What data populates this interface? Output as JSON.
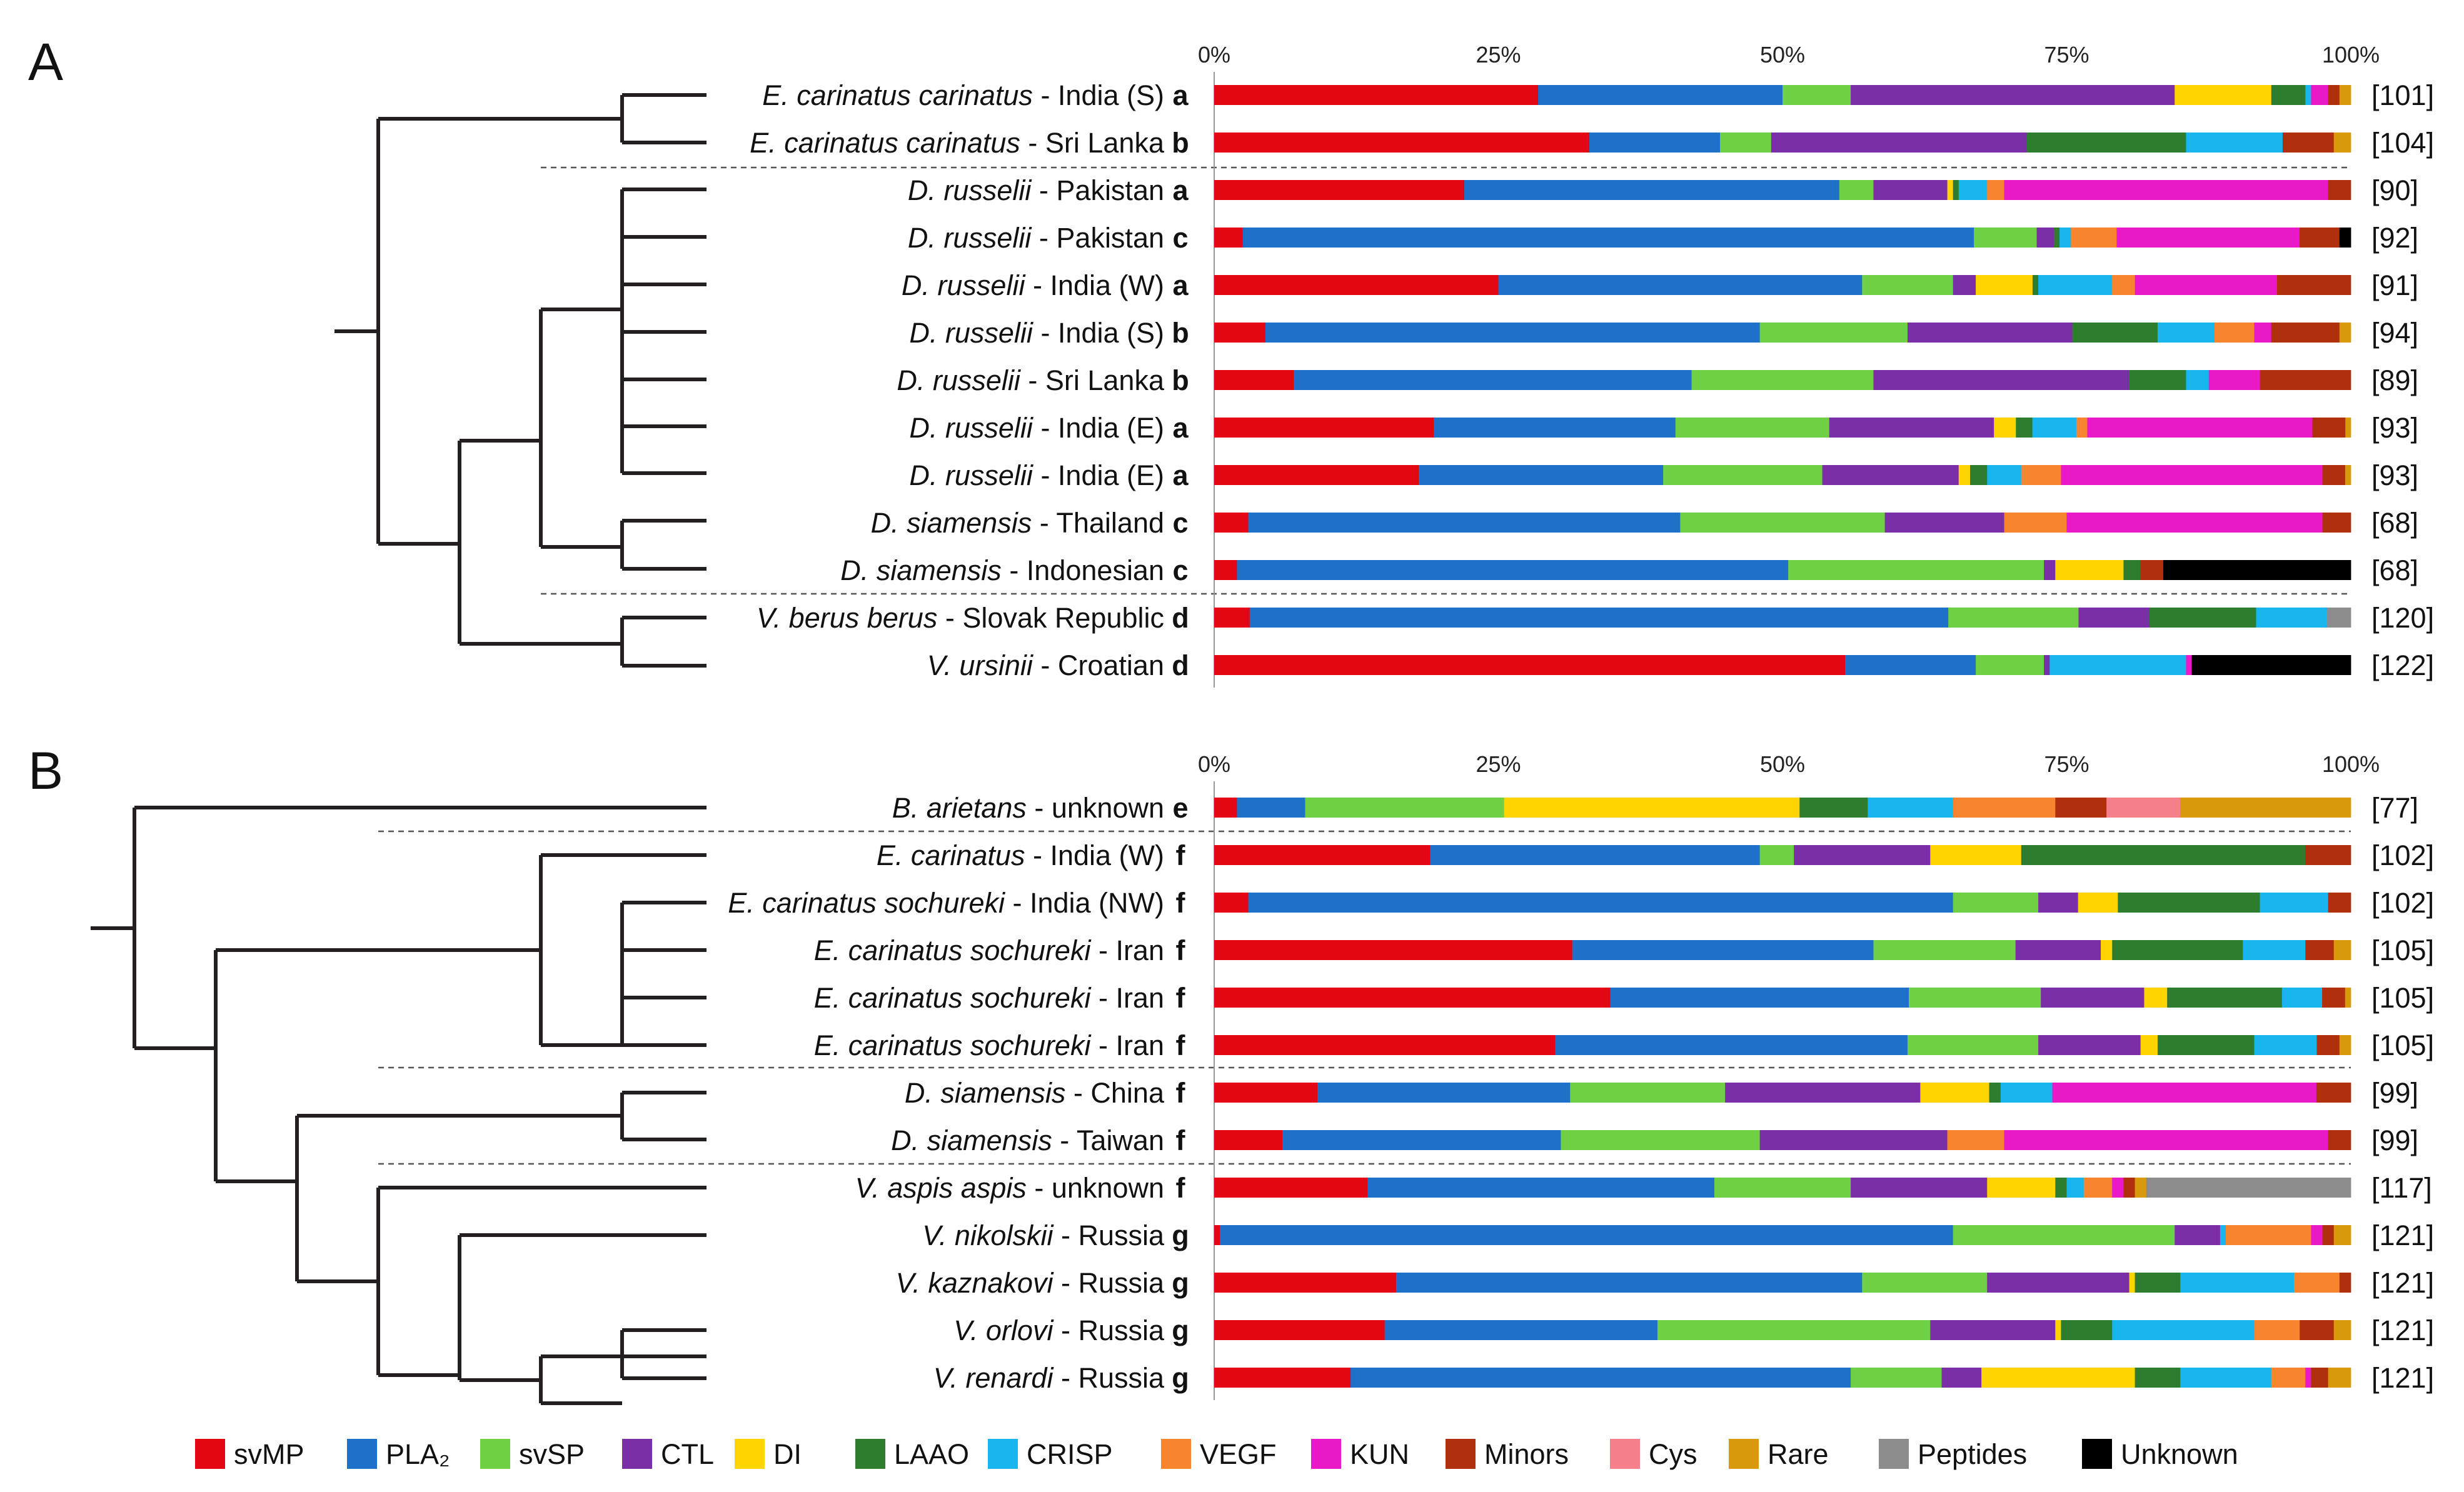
{
  "categories": [
    "svMP",
    "PLA₂",
    "svSP",
    "CTL",
    "DI",
    "LAAO",
    "CRISP",
    "VEGF",
    "KUN",
    "Minors",
    "Cys",
    "Rare",
    "Peptides",
    "Unknown"
  ],
  "colors": {
    "svMP": "#e30613",
    "PLA2": "#1f70c8",
    "svSP": "#6fcf45",
    "CTL": "#7b2fa6",
    "DI": "#ffd400",
    "LAAO": "#2e7d2e",
    "CRISP": "#19b5ee",
    "VEGF": "#f7842f",
    "KUN": "#ea19c8",
    "Minors": "#b0300d",
    "Cys": "#f57f8a",
    "Rare": "#d89a0c",
    "Peptides": "#8c8c8c",
    "Unknown": "#000000"
  },
  "chart_data": [
    {
      "type": "bar",
      "panel": "A",
      "orientation": "horizontal-stacked",
      "xlim": [
        0,
        100
      ],
      "xticks": [
        "0%",
        "25%",
        "50%",
        "75%",
        "100%"
      ],
      "rows": [
        {
          "genus": "E. carinatus carinatus",
          "locality": " - India (S)",
          "code": "a",
          "ref": "[101]",
          "values": [
            28.5,
            21.5,
            6,
            28.5,
            8.5,
            3,
            0.5,
            0,
            1.5,
            1,
            0,
            1,
            0,
            0
          ]
        },
        {
          "genus": "E. carinatus carinatus",
          "locality": " - Sri Lanka",
          "code": "b",
          "ref": "[104]",
          "values": [
            33,
            11.5,
            4.5,
            22.5,
            0,
            14,
            8.5,
            0,
            0,
            4.5,
            0,
            1.5,
            0,
            0
          ]
        },
        {
          "genus": "D. russelii",
          "locality": " - Pakistan",
          "code": "a",
          "ref": "[90]",
          "values": [
            22,
            33,
            3,
            6.5,
            0.5,
            0.5,
            2.5,
            1.5,
            28.5,
            2,
            0,
            0,
            0,
            0
          ]
        },
        {
          "genus": "D. russelii",
          "locality": " - Pakistan",
          "code": "c",
          "ref": "[92]",
          "values": [
            2.5,
            64,
            5.5,
            1.5,
            0,
            0.5,
            1,
            4,
            16,
            3.5,
            0,
            0,
            0,
            1
          ]
        },
        {
          "genus": "D. russelii",
          "locality": " - India (W)",
          "code": "a",
          "ref": "[91]",
          "values": [
            25,
            32,
            8,
            2,
            5,
            0.5,
            6.5,
            2,
            12.5,
            6.5,
            0,
            0,
            0,
            0
          ]
        },
        {
          "genus": "D. russelii",
          "locality": " - India (S)",
          "code": "b",
          "ref": "[94]",
          "values": [
            4.5,
            43.5,
            13,
            14.5,
            0,
            7.5,
            5,
            3.5,
            1.5,
            6,
            0,
            1,
            0,
            0
          ]
        },
        {
          "genus": "D. russelii",
          "locality": " - Sri Lanka",
          "code": "b",
          "ref": "[89]",
          "values": [
            7,
            35,
            16,
            22.5,
            0,
            5,
            2,
            0,
            4.5,
            8,
            0,
            0,
            0,
            0
          ]
        },
        {
          "genus": "D. russelii",
          "locality": " - India (E)",
          "code": "a",
          "ref": "[93]",
          "values": [
            20,
            22,
            14,
            15,
            2,
            1.5,
            4,
            1,
            20.5,
            3,
            0,
            0.5,
            0,
            0
          ]
        },
        {
          "genus": "D. russelii",
          "locality": " - India (E)",
          "code": "a",
          "ref": "[93]",
          "values": [
            18,
            21.5,
            14,
            12,
            1,
            1.5,
            3,
            3.5,
            23,
            2,
            0,
            0.5,
            0,
            0
          ]
        },
        {
          "genus": "D. siamensis",
          "locality": " - Thailand",
          "code": "c",
          "ref": "[68]",
          "values": [
            3,
            38,
            18,
            10.5,
            0,
            0,
            0,
            5.5,
            22.5,
            2.5,
            0,
            0,
            0,
            0
          ]
        },
        {
          "genus": "D. siamensis",
          "locality": " - Indonesian",
          "code": "c",
          "ref": "[68]",
          "values": [
            2,
            48.5,
            22.5,
            1,
            6,
            1.5,
            0,
            0,
            0,
            2,
            0,
            0,
            0,
            16.5
          ]
        },
        {
          "genus": "V. berus berus",
          "locality": " - Slovak Republic",
          "code": "d",
          "ref": "[120]",
          "values": [
            3,
            59,
            11,
            6,
            0,
            9,
            6,
            0,
            0,
            0,
            0,
            0,
            2,
            0
          ]
        },
        {
          "genus": "V. ursinii",
          "locality": " - Croatian",
          "code": "d",
          "ref": "[122]",
          "values": [
            55.5,
            11.5,
            6,
            0.5,
            0,
            0,
            12,
            0,
            0.5,
            0,
            0,
            0,
            0,
            14
          ]
        }
      ]
    },
    {
      "type": "bar",
      "panel": "B",
      "orientation": "horizontal-stacked",
      "xlim": [
        0,
        100
      ],
      "xticks": [
        "0%",
        "25%",
        "50%",
        "75%",
        "100%"
      ],
      "rows": [
        {
          "genus": "B. arietans",
          "locality": " - unknown",
          "code": "e",
          "ref": "[77]",
          "values": [
            2,
            6,
            17.5,
            0,
            26,
            6,
            7.5,
            9,
            0,
            4.5,
            6.5,
            15,
            0,
            0
          ]
        },
        {
          "genus": "E. carinatus",
          "locality": " - India (W)",
          "code": "f",
          "ref": "[102]",
          "values": [
            19,
            29,
            3,
            12,
            8,
            25,
            0,
            0,
            0,
            4,
            0,
            0,
            0,
            0
          ]
        },
        {
          "genus": "E. carinatus sochureki",
          "locality": " - India (NW)",
          "code": "f",
          "ref": "[102]",
          "values": [
            3,
            62,
            7.5,
            3.5,
            3.5,
            12.5,
            6,
            0,
            0,
            2,
            0,
            0,
            0,
            0
          ]
        },
        {
          "genus": "E. carinatus sochureki",
          "locality": " - Iran",
          "code": "f",
          "ref": "[105]",
          "values": [
            31.5,
            26.5,
            12.5,
            7.5,
            1,
            11.5,
            5.5,
            0,
            0,
            2.5,
            0,
            1.5,
            0,
            0
          ]
        },
        {
          "genus": "E. carinatus sochureki",
          "locality": " - Iran",
          "code": "f",
          "ref": "[105]",
          "values": [
            34.5,
            26,
            11.5,
            9,
            2,
            10,
            3.5,
            0,
            0,
            2,
            0,
            0.5,
            0,
            0
          ]
        },
        {
          "genus": "E. carinatus sochureki",
          "locality": " - Iran",
          "code": "f",
          "ref": "[105]",
          "values": [
            30,
            31,
            11.5,
            9,
            1.5,
            8.5,
            5.5,
            0,
            0,
            2,
            0,
            1,
            0,
            0
          ]
        },
        {
          "genus": "D. siamensis",
          "locality": " - China",
          "code": "f",
          "ref": "[99]",
          "values": [
            9,
            22,
            13.5,
            17,
            6,
            1,
            4.5,
            0,
            23,
            3,
            0,
            0,
            0,
            0
          ]
        },
        {
          "genus": "D. siamensis",
          "locality": " - Taiwan",
          "code": "f",
          "ref": "[99]",
          "values": [
            6,
            24.5,
            17.5,
            16.5,
            0,
            0,
            0,
            5,
            28.5,
            2,
            0,
            0,
            0,
            0
          ]
        },
        {
          "genus": "V. aspis aspis",
          "locality": " - unknown",
          "code": "f",
          "ref": "[117]",
          "values": [
            13.5,
            30.5,
            12,
            12,
            6,
            1,
            1.5,
            2.5,
            1,
            1,
            0,
            1,
            18,
            0
          ]
        },
        {
          "genus": "V. nikolskii",
          "locality": " - Russia",
          "code": "g",
          "ref": "[121]",
          "values": [
            0.5,
            64.5,
            19.5,
            4,
            0,
            0,
            0.5,
            7.5,
            1,
            1,
            0,
            1.5,
            0,
            0
          ]
        },
        {
          "genus": "V. kaznakovi",
          "locality": " - Russia",
          "code": "g",
          "ref": "[121]",
          "values": [
            16,
            41,
            11,
            12.5,
            0.5,
            4,
            10,
            4,
            0,
            1,
            0,
            0,
            0,
            0
          ]
        },
        {
          "genus": "V. orlovi",
          "locality": " - Russia",
          "code": "g",
          "ref": "[121]",
          "values": [
            15,
            24,
            24,
            11,
            0.5,
            4.5,
            12.5,
            4,
            0,
            3,
            0,
            1.5,
            0,
            0
          ]
        },
        {
          "genus": "V. renardi",
          "locality": " - Russia",
          "code": "g",
          "ref": "[121]",
          "values": [
            12,
            44,
            8,
            3.5,
            13.5,
            4,
            8,
            3,
            0.5,
            1.5,
            0,
            2,
            0,
            0
          ]
        }
      ]
    }
  ],
  "panels": {
    "A": "A",
    "B": "B"
  }
}
